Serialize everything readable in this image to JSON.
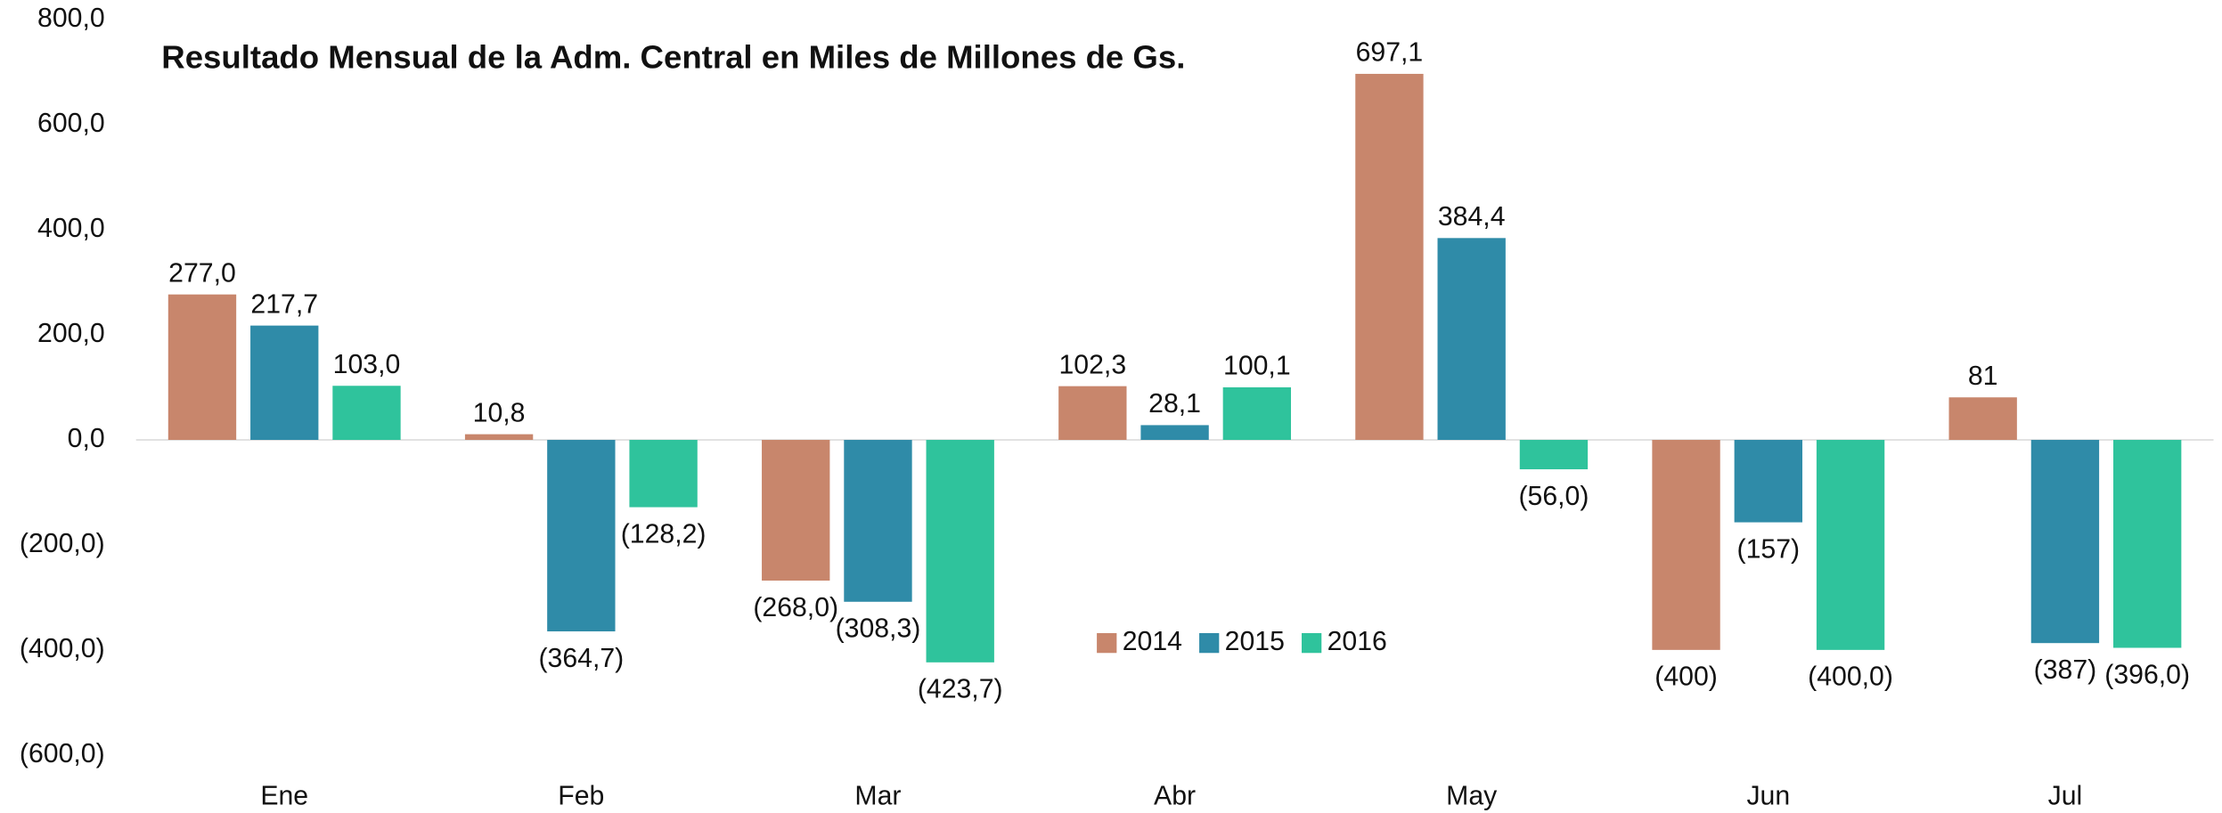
{
  "chart_data": {
    "type": "bar",
    "title": "Resultado Mensual de la Adm. Central en Miles de Millones de Gs.",
    "categories": [
      "Ene",
      "Feb",
      "Mar",
      "Abr",
      "May",
      "Jun",
      "Jul"
    ],
    "series": [
      {
        "name": "2014",
        "color": "#c8866c",
        "values": [
          277.0,
          10.8,
          -268.0,
          102.3,
          697.1,
          -400,
          81
        ],
        "value_labels": [
          "277,0",
          "10,8",
          "(268,0)",
          "102,3",
          "697,1",
          "(400)",
          "81"
        ]
      },
      {
        "name": "2015",
        "color": "#2f8ba8",
        "values": [
          217.7,
          -364.7,
          -308.3,
          28.1,
          384.4,
          -157,
          -387
        ],
        "value_labels": [
          "217,7",
          "(364,7)",
          "(308,3)",
          "28,1",
          "384,4",
          "(157)",
          "(387)"
        ]
      },
      {
        "name": "2016",
        "color": "#2fc39c",
        "values": [
          103.0,
          -128.2,
          -423.7,
          100.1,
          -56.0,
          -400.0,
          -396.0
        ],
        "value_labels": [
          "103,0",
          "(128,2)",
          "(423,7)",
          "100,1",
          "(56,0)",
          "(400,0)",
          "(396,0)"
        ]
      }
    ],
    "ylim": [
      -600,
      800
    ],
    "yticks": [
      {
        "value": -600,
        "label": "(600,0)"
      },
      {
        "value": -400,
        "label": "(400,0)"
      },
      {
        "value": -200,
        "label": "(200,0)"
      },
      {
        "value": 0,
        "label": "0,0"
      },
      {
        "value": 200,
        "label": "200,0"
      },
      {
        "value": 400,
        "label": "400,0"
      },
      {
        "value": 600,
        "label": "600,0"
      },
      {
        "value": 800,
        "label": "800,0"
      }
    ],
    "legend": "bottom-center"
  }
}
